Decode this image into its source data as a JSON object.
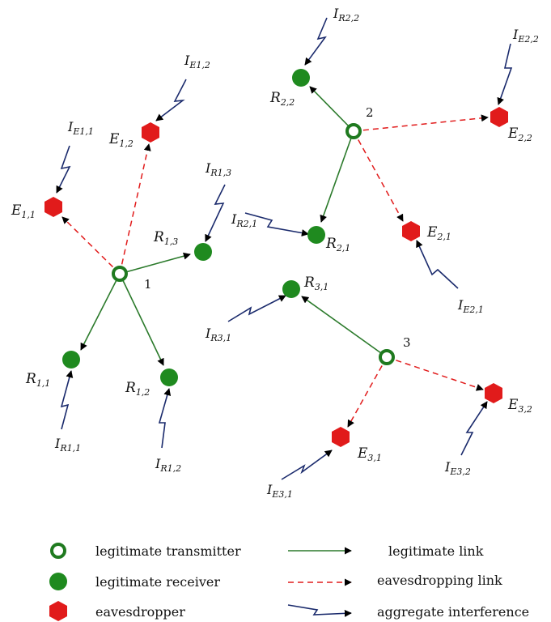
{
  "colors": {
    "legit": "#2b7a2b",
    "receiver": "#1f8a1f",
    "eaves": "#e11b1b",
    "interference": "#1a2a6c",
    "text": "#111111"
  },
  "transmitters": [
    {
      "label": "1"
    },
    {
      "label": "2"
    },
    {
      "label": "3"
    }
  ],
  "receivers": [
    {
      "main": "R",
      "sub": "1,1"
    },
    {
      "main": "R",
      "sub": "1,2"
    },
    {
      "main": "R",
      "sub": "1,3"
    },
    {
      "main": "R",
      "sub": "2,1"
    },
    {
      "main": "R",
      "sub": "2,2"
    },
    {
      "main": "R",
      "sub": "3,1"
    }
  ],
  "eavesdroppers": [
    {
      "main": "E",
      "sub": "1,1"
    },
    {
      "main": "E",
      "sub": "1,2"
    },
    {
      "main": "E",
      "sub": "2,1"
    },
    {
      "main": "E",
      "sub": "2,2"
    },
    {
      "main": "E",
      "sub": "3,1"
    },
    {
      "main": "E",
      "sub": "3,2"
    }
  ],
  "interference_labels": [
    {
      "main": "I",
      "sub": "E1,1"
    },
    {
      "main": "I",
      "sub": "E1,2"
    },
    {
      "main": "I",
      "sub": "R1,3"
    },
    {
      "main": "I",
      "sub": "R1,1"
    },
    {
      "main": "I",
      "sub": "R1,2"
    },
    {
      "main": "I",
      "sub": "R2,2"
    },
    {
      "main": "I",
      "sub": "E2,2"
    },
    {
      "main": "I",
      "sub": "R2,1"
    },
    {
      "main": "I",
      "sub": "E2,1"
    },
    {
      "main": "I",
      "sub": "R3,1"
    },
    {
      "main": "I",
      "sub": "E3,1"
    },
    {
      "main": "I",
      "sub": "E3,2"
    }
  ],
  "legend": {
    "transmitter": "legitimate transmitter",
    "receiver": "legitimate receiver",
    "eavesdropper": "eavesdropper",
    "legit_link": "legitimate link",
    "eaves_link": "eavesdropping link",
    "interference": "aggregate interference"
  }
}
